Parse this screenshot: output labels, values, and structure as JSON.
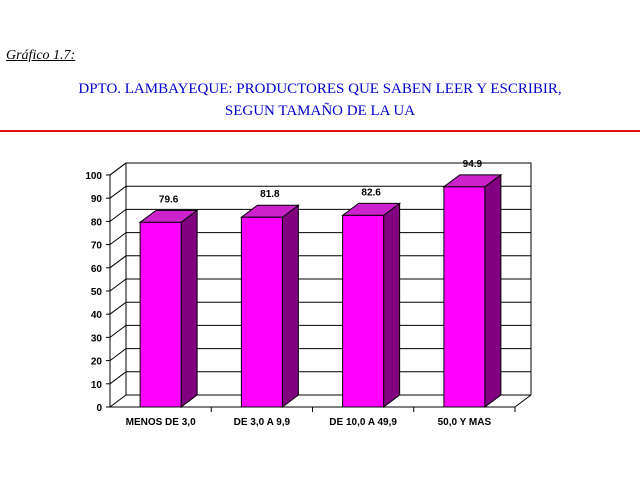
{
  "figure_label": "Gráfico 1.7:",
  "title_line1": "DPTO. LAMBAYEQUE: PRODUCTORES QUE SABEN LEER Y ESCRIBIR,",
  "title_line2": "SEGUN TAMAÑO DE LA UA",
  "chart_data": {
    "type": "bar",
    "categories": [
      "MENOS DE 3,0",
      "DE 3,0 A 9,9",
      "DE 10,0 A 49,9",
      "50,0 Y MAS"
    ],
    "values": [
      79.6,
      81.8,
      82.6,
      94.9
    ],
    "data_labels": [
      "79.6",
      "81.8",
      "82.6",
      "94.9"
    ],
    "ylim": [
      0,
      100
    ],
    "yticks": [
      0,
      10,
      20,
      30,
      40,
      50,
      60,
      70,
      80,
      90,
      100
    ],
    "grid": true,
    "style": "3d",
    "colors": {
      "bar_front": "#ff00ff",
      "bar_side": "#800080",
      "bar_top": "#cc22cc",
      "rule": "#e01010",
      "title": "#0000cc"
    }
  }
}
